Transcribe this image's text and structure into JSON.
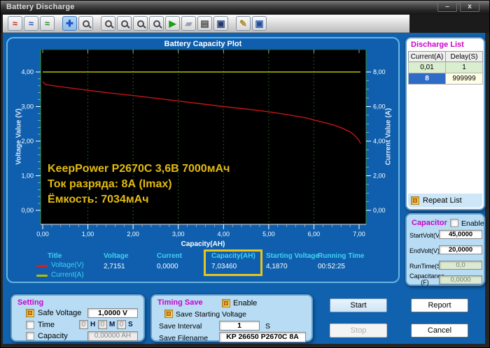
{
  "window": {
    "title": "Battery Discharge",
    "minimize_glyph": "–",
    "close_glyph": "x"
  },
  "toolbar": {
    "icons": [
      {
        "name": "select-curve-icon",
        "kind": "text",
        "glyph": "≈",
        "color": "#c03030"
      },
      {
        "name": "select-x-range-icon",
        "kind": "text",
        "glyph": "≈",
        "color": "#3050c0"
      },
      {
        "name": "data-cursor-icon",
        "kind": "text",
        "glyph": "≈",
        "color": "#2e8a2e"
      },
      {
        "name": "pan-icon",
        "kind": "text",
        "glyph": "✚",
        "color": "#1a56c4",
        "active": true,
        "gap": true
      },
      {
        "name": "zoom-dynamic-icon",
        "kind": "mag"
      },
      {
        "name": "zoom-selection-icon",
        "kind": "mag",
        "gap": true
      },
      {
        "name": "zoom-x-icon",
        "kind": "mag"
      },
      {
        "name": "zoom-window-icon",
        "kind": "mag"
      },
      {
        "name": "zoom-reset-icon",
        "kind": "mag"
      },
      {
        "name": "run-icon",
        "kind": "text",
        "glyph": "▶",
        "color": "#18a018"
      },
      {
        "name": "erase-icon",
        "kind": "text",
        "glyph": "▰",
        "color": "#9aa0b8"
      },
      {
        "name": "print-icon",
        "kind": "text",
        "glyph": "▤",
        "color": "#4a4a4a"
      },
      {
        "name": "save-image-icon",
        "kind": "text",
        "glyph": "▣",
        "color": "#203a70"
      },
      {
        "name": "new-file-icon",
        "kind": "text",
        "glyph": "✎",
        "color": "#b08a20",
        "gap": true
      },
      {
        "name": "save-data-icon",
        "kind": "text",
        "glyph": "▣",
        "color": "#2050a0"
      }
    ]
  },
  "chart_data": {
    "type": "line",
    "title": "Battery Capacity Plot",
    "xlabel": "Capacity(AH)",
    "ylabel_left": "Voltage Value (V)",
    "ylabel_right": "Current Value (A)",
    "xlim": [
      0,
      7
    ],
    "ylim_left": [
      0,
      4
    ],
    "ylim_right": [
      0,
      8
    ],
    "grid": "vertical dotted green on black",
    "legend_position": "below-left",
    "x_ticks": [
      0,
      1,
      2,
      3,
      4,
      5,
      6,
      7
    ],
    "x_tick_labels": [
      "0,00",
      "1,00",
      "2,00",
      "3,00",
      "4,00",
      "5,00",
      "6,00",
      "7,00"
    ],
    "y_left_ticks": [
      0,
      1,
      2,
      3,
      4
    ],
    "y_left_tick_labels": [
      "0,00",
      "1,00",
      "2,00",
      "3,00",
      "4,00"
    ],
    "y_right_ticks": [
      0,
      2,
      4,
      6,
      8
    ],
    "y_right_tick_labels": [
      "0,00",
      "2,00",
      "4,00",
      "6,00",
      "8,00"
    ],
    "annotation_lines": [
      "KeepPower P2670C 3,6В 7000мАч",
      "Ток разряда: 8А (Imax)",
      "Ёмкость: 7034мАч"
    ],
    "series": [
      {
        "name": "Voltage(V)",
        "axis": "left",
        "color": "#c41414",
        "points": [
          [
            0,
            3.72
          ],
          [
            0.06,
            3.64
          ],
          [
            0.25,
            3.6
          ],
          [
            0.6,
            3.54
          ],
          [
            1,
            3.47
          ],
          [
            1.5,
            3.39
          ],
          [
            2,
            3.32
          ],
          [
            2.5,
            3.24
          ],
          [
            3,
            3.16
          ],
          [
            3.5,
            3.08
          ],
          [
            4,
            3.0
          ],
          [
            4.5,
            2.93
          ],
          [
            5,
            2.85
          ],
          [
            5.4,
            2.77
          ],
          [
            5.8,
            2.68
          ],
          [
            6.1,
            2.58
          ],
          [
            6.4,
            2.48
          ],
          [
            6.6,
            2.39
          ],
          [
            6.8,
            2.27
          ],
          [
            6.9,
            2.17
          ],
          [
            7,
            2.02
          ],
          [
            7.03,
            1.93
          ]
        ]
      },
      {
        "name": "Current(A)",
        "axis": "right",
        "color": "#b8bc00",
        "points": [
          [
            0,
            8
          ],
          [
            7.03,
            8
          ]
        ]
      }
    ]
  },
  "stats": {
    "headers": [
      "Title",
      "Voltage",
      "Current",
      "Capacity(AH)",
      "Starting Voltage",
      "Running Time"
    ],
    "legend": [
      {
        "label": "Voltage(V)",
        "color": "#d42020"
      },
      {
        "label": "Current(A)",
        "color": "#b8bc00"
      }
    ],
    "voltage": "2,7151",
    "current": "0,0000",
    "capacity": "7,03460",
    "starting_voltage": "4,1870",
    "running_time": "00:52:25"
  },
  "colors": {
    "highlight_box": "#e8c51c",
    "header_cyan": "#3fd2f2",
    "panel_title_magenta": "#cc00cc"
  },
  "discharge_list": {
    "title": "Discharge List",
    "columns": [
      "Current(A)",
      "Delay(S)"
    ],
    "rows": [
      [
        "0,01",
        "1"
      ],
      [
        "8",
        "999999"
      ]
    ],
    "repeat_label": "Repeat List",
    "repeat_checked": true
  },
  "capacitor": {
    "title": "Capacitor",
    "enable_label": "Enable",
    "enable_checked": false,
    "fields": [
      {
        "label": "StartVolt(V)",
        "value": "45,0000"
      },
      {
        "label": "EndVolt(V)",
        "value": "20,0000"
      },
      {
        "label": "RunTime(S)",
        "value": "0,0"
      },
      {
        "label": "Capacitance",
        "label2": "(F)",
        "value": "0,0000"
      }
    ]
  },
  "setting": {
    "title": "Setting",
    "safe_voltage_label": "Safe Voltage",
    "safe_voltage_value": "1,0000 V",
    "safe_voltage_checked": true,
    "time_label": "Time",
    "time_checked": false,
    "time_values": [
      "0",
      "0",
      "0"
    ],
    "time_units": [
      "H",
      "M",
      "S"
    ],
    "capacity_label": "Capacity",
    "capacity_checked": false,
    "capacity_value": "0,00000 AH"
  },
  "timing_save": {
    "title": "Timing Save",
    "enable_label": "Enable",
    "enable_checked": true,
    "save_starting_label": "Save Starting Voltage",
    "save_starting_checked": true,
    "interval_label": "Save Interval",
    "interval_value": "1",
    "interval_unit": "S",
    "filename_label": "Save Filename",
    "filename_value": "KP 26650 P2670C 8A"
  },
  "actions": {
    "start": "Start",
    "stop": "Stop",
    "report": "Report",
    "cancel": "Cancel"
  }
}
